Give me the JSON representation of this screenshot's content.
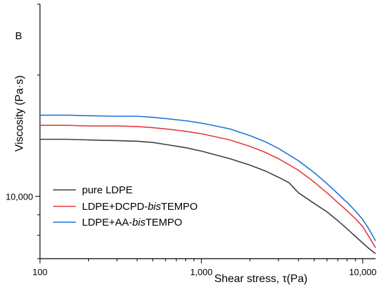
{
  "chart_data": {
    "type": "line",
    "panel_label": "B",
    "xlabel": "Shear stress, τ(Pa)",
    "ylabel": "Viscosity (Pa·s)",
    "x_scale": "log",
    "y_scale": "log",
    "xlim": [
      100,
      12000
    ],
    "ylim": [
      7000,
      30000
    ],
    "x_ticks": [
      {
        "value": 100,
        "label": "100"
      },
      {
        "value": 1000,
        "label": "1,000"
      },
      {
        "value": 10000,
        "label": "10,000"
      }
    ],
    "y_ticks": [
      {
        "value": 10000,
        "label": "10,000"
      }
    ],
    "legend_position": "bottom-left",
    "grid": false,
    "series": [
      {
        "name": "pure LDPE",
        "name_parts": [
          {
            "text": "pure LDPE",
            "italic": false
          }
        ],
        "color": "#3c3c3c",
        "x": [
          100,
          150,
          200,
          300,
          400,
          500,
          600,
          800,
          1000,
          1500,
          2000,
          2500,
          3000,
          3500,
          4000,
          5000,
          6000,
          7000,
          8000,
          9000,
          10000,
          11000,
          12000
        ],
        "y": [
          13850,
          13850,
          13800,
          13750,
          13700,
          13600,
          13450,
          13200,
          12950,
          12400,
          11950,
          11550,
          11150,
          10800,
          10200,
          9600,
          9150,
          8700,
          8300,
          7950,
          7650,
          7400,
          7200
        ]
      },
      {
        "name": "LDPE+DCPD-bisTEMPO",
        "name_parts": [
          {
            "text": "LDPE+DCPD-",
            "italic": false
          },
          {
            "text": "bis",
            "italic": true
          },
          {
            "text": "TEMPO",
            "italic": false
          }
        ],
        "color": "#e8383b",
        "x": [
          100,
          150,
          200,
          300,
          400,
          500,
          600,
          800,
          1000,
          1500,
          2000,
          2500,
          3000,
          4000,
          5000,
          6000,
          7000,
          8000,
          9000,
          10000,
          11000,
          12000
        ],
        "y": [
          15000,
          15000,
          14950,
          14950,
          14900,
          14800,
          14700,
          14500,
          14300,
          13800,
          13300,
          12850,
          12400,
          11600,
          10850,
          10200,
          9650,
          9200,
          8800,
          8400,
          7900,
          7450
        ]
      },
      {
        "name": "LDPE+AA-bisTEMPO",
        "name_parts": [
          {
            "text": "LDPE+AA-",
            "italic": false
          },
          {
            "text": "bis",
            "italic": true
          },
          {
            "text": "TEMPO",
            "italic": false
          }
        ],
        "color": "#1a74d4",
        "x": [
          100,
          150,
          200,
          300,
          400,
          500,
          600,
          800,
          1000,
          1500,
          2000,
          2500,
          3000,
          4000,
          5000,
          6000,
          7000,
          8000,
          9000,
          10000,
          11000,
          12000
        ],
        "y": [
          15900,
          15900,
          15850,
          15800,
          15800,
          15700,
          15600,
          15400,
          15200,
          14700,
          14150,
          13650,
          13150,
          12250,
          11450,
          10750,
          10150,
          9650,
          9200,
          8750,
          8250,
          7750
        ]
      }
    ]
  }
}
